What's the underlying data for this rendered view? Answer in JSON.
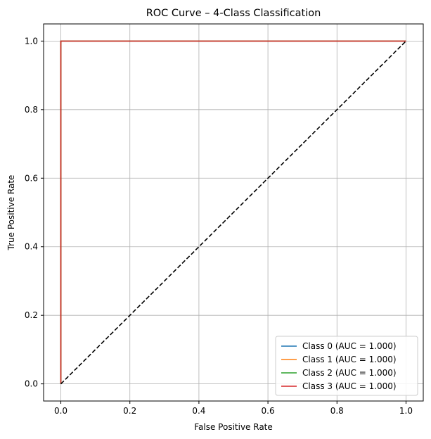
{
  "chart_data": {
    "type": "line",
    "title": "ROC Curve – 4-Class Classification",
    "xlabel": "False Positive Rate",
    "ylabel": "True Positive Rate",
    "xlim": [
      -0.05,
      1.05
    ],
    "ylim": [
      -0.05,
      1.05
    ],
    "grid": true,
    "legend_position": "lower-right",
    "xticks": [
      0.0,
      0.2,
      0.4,
      0.6,
      0.8,
      1.0
    ],
    "yticks": [
      0.0,
      0.2,
      0.4,
      0.6,
      0.8,
      1.0
    ],
    "xtick_labels": [
      "0.0",
      "0.2",
      "0.4",
      "0.6",
      "0.8",
      "1.0"
    ],
    "ytick_labels": [
      "0.0",
      "0.2",
      "0.4",
      "0.6",
      "0.8",
      "1.0"
    ],
    "series": [
      {
        "name": "Class 0 (AUC = 1.000)",
        "color": "#1f77b4",
        "x": [
          0,
          0,
          1
        ],
        "y": [
          0,
          1,
          1
        ]
      },
      {
        "name": "Class 1 (AUC = 1.000)",
        "color": "#ff7f0e",
        "x": [
          0,
          0,
          1
        ],
        "y": [
          0,
          1,
          1
        ]
      },
      {
        "name": "Class 2 (AUC = 1.000)",
        "color": "#2ca02c",
        "x": [
          0,
          0,
          1
        ],
        "y": [
          0,
          1,
          1
        ]
      },
      {
        "name": "Class 3 (AUC = 1.000)",
        "color": "#d62728",
        "x": [
          0,
          0,
          1
        ],
        "y": [
          0,
          1,
          1
        ]
      }
    ],
    "reference_line": {
      "x": [
        0,
        1
      ],
      "y": [
        0,
        1
      ],
      "color": "#000000",
      "style": "dashed"
    }
  }
}
